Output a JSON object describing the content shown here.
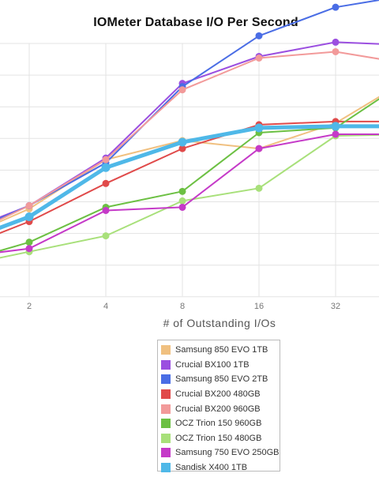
{
  "chart_data": {
    "type": "line",
    "title": "IOMeter Database I/O Per Second",
    "xlabel": "# of Outstanding I/Os",
    "ylabel": "",
    "x_tick_labels": [
      "2",
      "4",
      "8",
      "16",
      "32"
    ],
    "x": [
      1,
      2,
      4,
      8,
      16,
      32,
      64
    ],
    "grid": true,
    "legend_position": "bottom",
    "series": [
      {
        "name": "Samsung 850 EVO 1TB",
        "color": "#f0c080",
        "values": [
          -0.3,
          0.75,
          2.3,
          2.9,
          2.65,
          3.45,
          4.9
        ]
      },
      {
        "name": "Crucial BX100 1TB",
        "color": "#9b4fe0",
        "values": [
          -0.1,
          0.85,
          2.35,
          4.7,
          5.55,
          6.0,
          5.9
        ]
      },
      {
        "name": "Samsung 850 EVO 2TB",
        "color": "#4a6de5",
        "values": [
          -0.2,
          0.85,
          2.2,
          4.6,
          6.2,
          7.1,
          7.5
        ]
      },
      {
        "name": "Crucial BX200 480GB",
        "color": "#e04a4a",
        "values": [
          -0.6,
          0.35,
          1.55,
          2.65,
          3.4,
          3.5,
          3.5
        ]
      },
      {
        "name": "Crucial BX200 960GB",
        "color": "#f29a9a",
        "values": [
          -0.3,
          0.85,
          2.3,
          4.5,
          5.5,
          5.7,
          5.3
        ]
      },
      {
        "name": "OCZ Trion 150 960GB",
        "color": "#6cc043",
        "values": [
          -1.0,
          -0.3,
          0.8,
          1.3,
          3.15,
          3.3,
          4.9
        ]
      },
      {
        "name": "OCZ Trion 150 480GB",
        "color": "#a8e07a",
        "values": [
          -1.1,
          -0.6,
          -0.1,
          1.0,
          1.4,
          3.05,
          3.1
        ]
      },
      {
        "name": "Samsung 750 EVO 250GB",
        "color": "#c53ac8",
        "values": [
          -0.8,
          -0.5,
          0.7,
          0.8,
          2.65,
          3.1,
          3.1
        ]
      },
      {
        "name": "Sandisk X400 1TB",
        "color": "#4fb8e8",
        "values": [
          -0.4,
          0.5,
          2.05,
          2.85,
          3.3,
          3.35,
          3.35
        ]
      }
    ]
  }
}
